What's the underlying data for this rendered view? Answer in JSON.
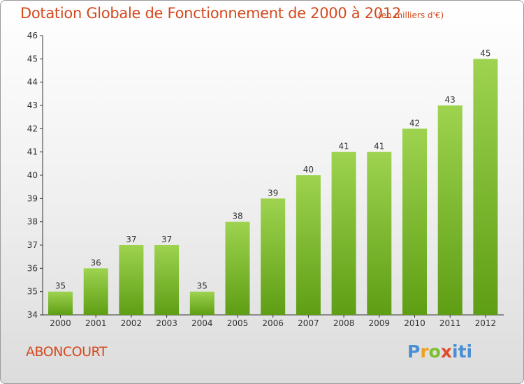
{
  "title": "Dotation Globale de Fonctionnement de 2000 à 2012",
  "unit_note": "(en milliers d'€)",
  "location": "ABONCOURT",
  "logo_text": "Proxiti",
  "colors": {
    "bar_top": "#9ed34f",
    "bar_bottom": "#5e9e14",
    "title": "#d4491e"
  },
  "chart_data": {
    "type": "bar",
    "title": "Dotation Globale de Fonctionnement de 2000 à 2012",
    "xlabel": "",
    "ylabel": "",
    "categories": [
      "2000",
      "2001",
      "2002",
      "2003",
      "2004",
      "2005",
      "2006",
      "2007",
      "2008",
      "2009",
      "2010",
      "2011",
      "2012"
    ],
    "values": [
      35,
      36,
      37,
      37,
      35,
      38,
      39,
      40,
      41,
      41,
      42,
      43,
      45
    ],
    "ylim": [
      34,
      46
    ],
    "yticks": [
      34,
      35,
      36,
      37,
      38,
      39,
      40,
      41,
      42,
      43,
      44,
      45,
      46
    ],
    "grid": false,
    "legend": "none"
  }
}
